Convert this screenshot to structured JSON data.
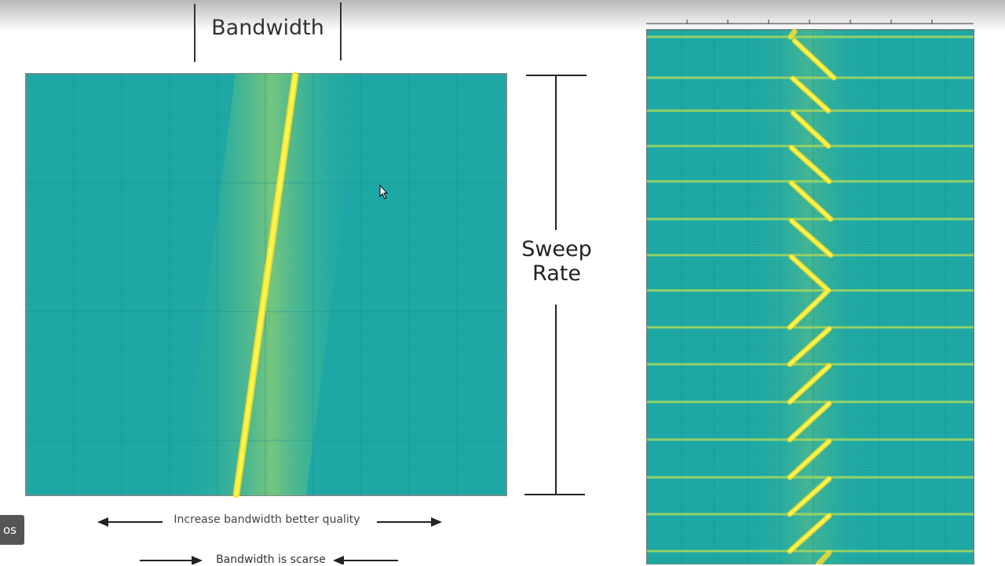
{
  "slide": {
    "bandwidth_label": "Bandwidth",
    "sweep_rate_label": "Sweep\nRate",
    "caption_increase": "Increase bandwidth better quality",
    "caption_scarce": "Bandwidth is scarse"
  },
  "overlay": {
    "videos_button_text": "os"
  },
  "colors": {
    "background_teal": "#1fa9a6",
    "chirp_yellow": "#fff23a",
    "glow_green": "#9fd46a",
    "annotation_black": "#222222"
  },
  "icons": {
    "cursor": "mouse-pointer-icon",
    "left_arrow": "left-arrow-icon",
    "right_arrow": "right-arrow-icon"
  },
  "left_spectrogram": {
    "description_type": "single linear chirp",
    "slope": "frequency increases upward"
  },
  "right_spectrogram": {
    "description_type": "repeated sawtooth/triangle chirps",
    "repetitions_down": 7,
    "repetitions_up": 7
  }
}
